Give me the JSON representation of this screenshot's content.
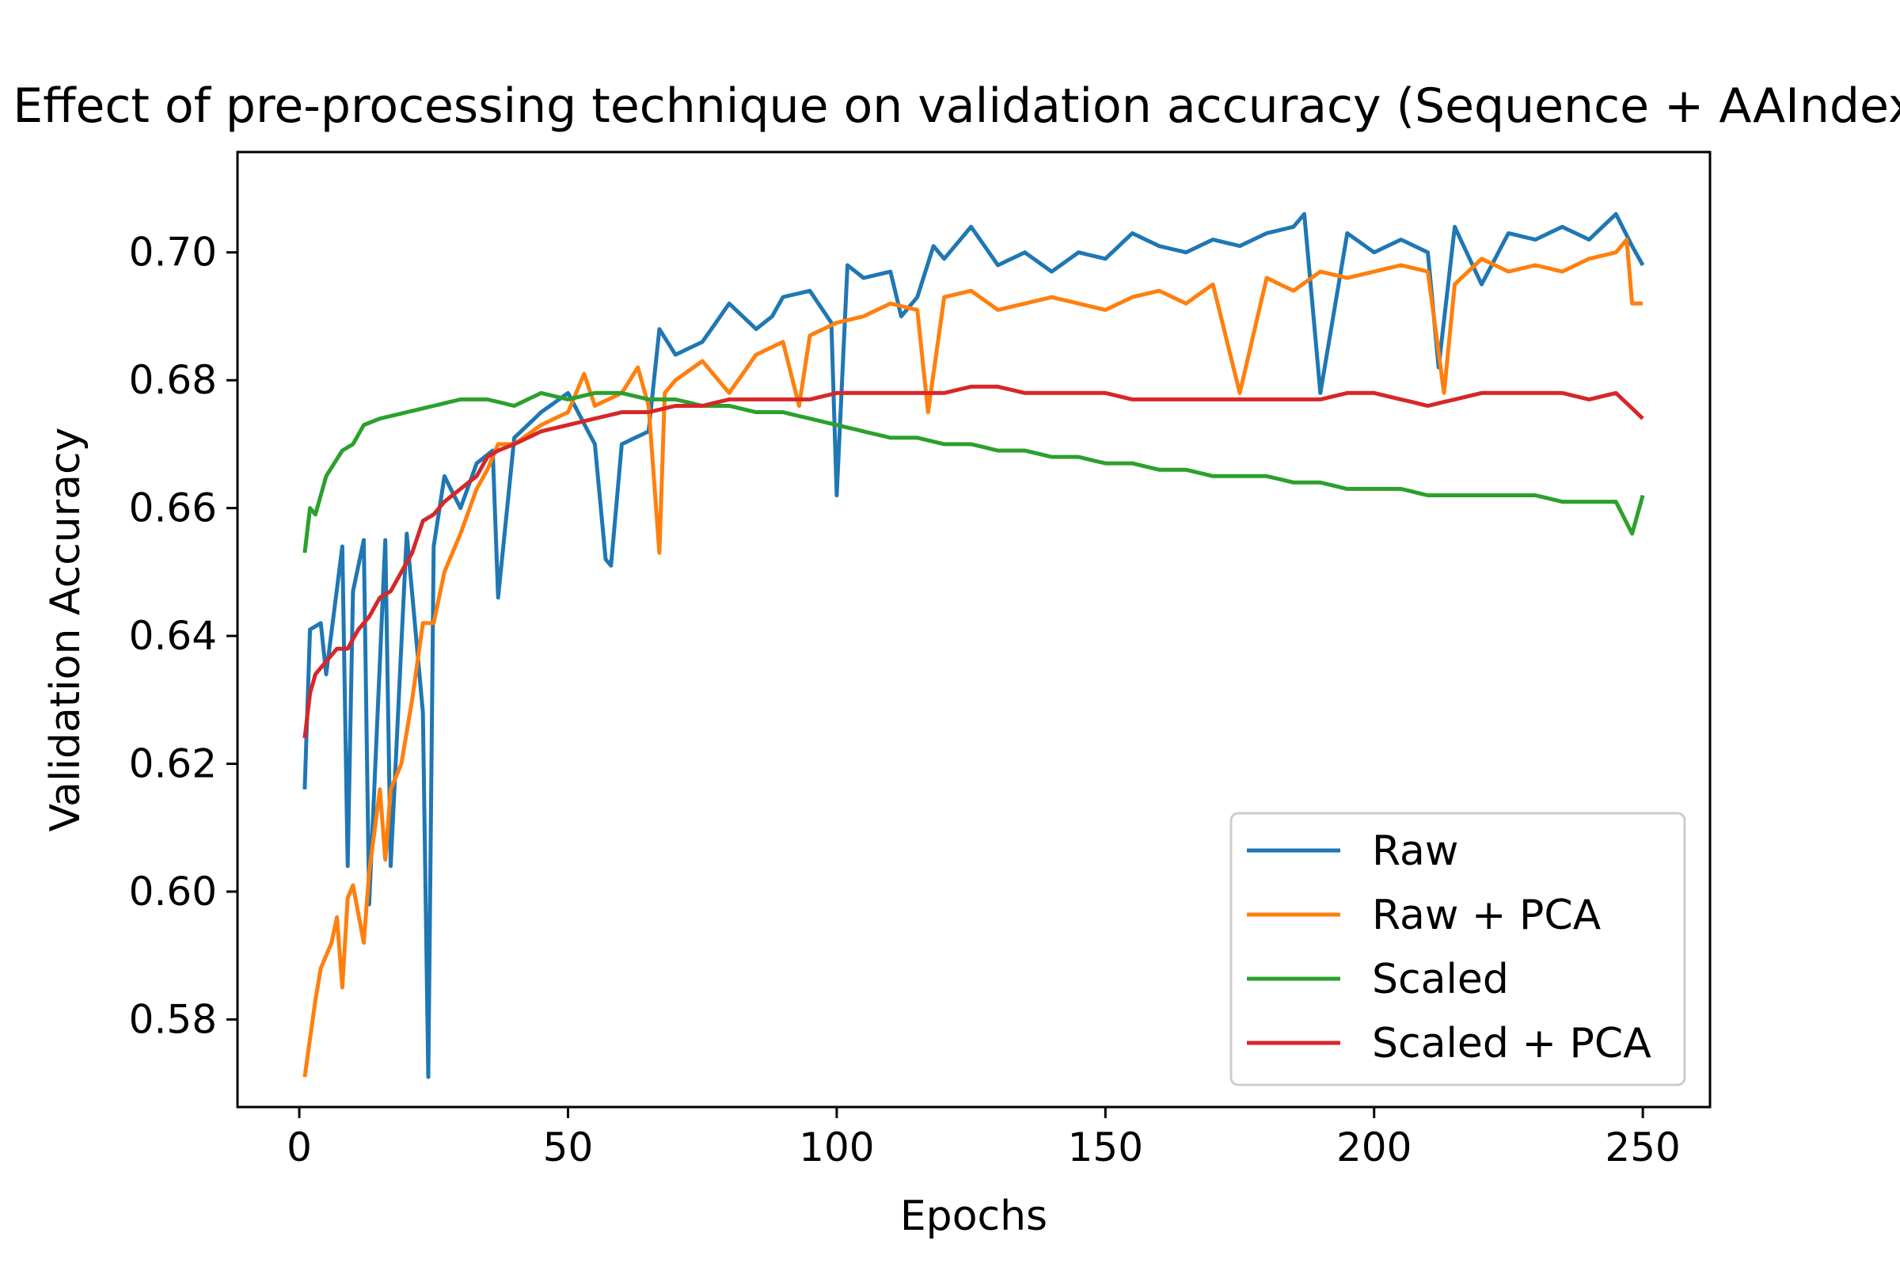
{
  "chart_data": {
    "type": "line",
    "title": "Effect of pre-processing technique on validation accuracy (Sequence + AAIndex)",
    "xlabel": "Epochs",
    "ylabel": "Validation Accuracy",
    "xlim": [
      -11.5,
      262.5
    ],
    "ylim": [
      0.5663,
      0.7157
    ],
    "x_ticks": [
      0,
      50,
      100,
      150,
      200,
      250
    ],
    "y_ticks": [
      0.58,
      0.6,
      0.62,
      0.64,
      0.66,
      0.68,
      0.7
    ],
    "x_tick_labels": [
      "0",
      "50",
      "100",
      "150",
      "200",
      "250"
    ],
    "y_tick_labels": [
      "0.58",
      "0.60",
      "0.62",
      "0.64",
      "0.66",
      "0.68",
      "0.70"
    ],
    "grid": false,
    "legend_position": "lower-right",
    "x": {
      "start": 1,
      "end": 250
    },
    "series": [
      {
        "name": "Raw",
        "color": "#1f77b4",
        "anchors": [
          [
            1,
            0.616
          ],
          [
            2,
            0.641
          ],
          [
            4,
            0.642
          ],
          [
            5,
            0.634
          ],
          [
            8,
            0.654
          ],
          [
            9,
            0.604
          ],
          [
            10,
            0.647
          ],
          [
            12,
            0.655
          ],
          [
            13,
            0.598
          ],
          [
            16,
            0.655
          ],
          [
            17,
            0.604
          ],
          [
            20,
            0.656
          ],
          [
            23,
            0.628
          ],
          [
            24,
            0.571
          ],
          [
            25,
            0.654
          ],
          [
            27,
            0.665
          ],
          [
            30,
            0.66
          ],
          [
            33,
            0.667
          ],
          [
            36,
            0.669
          ],
          [
            37,
            0.646
          ],
          [
            40,
            0.671
          ],
          [
            45,
            0.675
          ],
          [
            50,
            0.678
          ],
          [
            55,
            0.67
          ],
          [
            57,
            0.652
          ],
          [
            58,
            0.651
          ],
          [
            60,
            0.67
          ],
          [
            65,
            0.672
          ],
          [
            67,
            0.688
          ],
          [
            70,
            0.684
          ],
          [
            75,
            0.686
          ],
          [
            80,
            0.692
          ],
          [
            85,
            0.688
          ],
          [
            88,
            0.69
          ],
          [
            90,
            0.693
          ],
          [
            95,
            0.694
          ],
          [
            99,
            0.689
          ],
          [
            100,
            0.662
          ],
          [
            102,
            0.698
          ],
          [
            105,
            0.696
          ],
          [
            110,
            0.697
          ],
          [
            112,
            0.69
          ],
          [
            115,
            0.693
          ],
          [
            118,
            0.701
          ],
          [
            120,
            0.699
          ],
          [
            125,
            0.704
          ],
          [
            130,
            0.698
          ],
          [
            135,
            0.7
          ],
          [
            140,
            0.697
          ],
          [
            145,
            0.7
          ],
          [
            150,
            0.699
          ],
          [
            155,
            0.703
          ],
          [
            160,
            0.701
          ],
          [
            165,
            0.7
          ],
          [
            170,
            0.702
          ],
          [
            175,
            0.701
          ],
          [
            180,
            0.703
          ],
          [
            185,
            0.704
          ],
          [
            187,
            0.706
          ],
          [
            190,
            0.678
          ],
          [
            195,
            0.703
          ],
          [
            200,
            0.7
          ],
          [
            205,
            0.702
          ],
          [
            210,
            0.7
          ],
          [
            212,
            0.682
          ],
          [
            215,
            0.704
          ],
          [
            220,
            0.695
          ],
          [
            225,
            0.703
          ],
          [
            230,
            0.702
          ],
          [
            235,
            0.704
          ],
          [
            240,
            0.702
          ],
          [
            245,
            0.706
          ],
          [
            248,
            0.701
          ],
          [
            250,
            0.698
          ]
        ]
      },
      {
        "name": "Raw + PCA",
        "color": "#ff7f0e",
        "anchors": [
          [
            1,
            0.571
          ],
          [
            3,
            0.583
          ],
          [
            4,
            0.588
          ],
          [
            6,
            0.592
          ],
          [
            7,
            0.596
          ],
          [
            8,
            0.585
          ],
          [
            9,
            0.599
          ],
          [
            10,
            0.601
          ],
          [
            12,
            0.592
          ],
          [
            13,
            0.603
          ],
          [
            15,
            0.616
          ],
          [
            16,
            0.605
          ],
          [
            17,
            0.616
          ],
          [
            19,
            0.62
          ],
          [
            21,
            0.63
          ],
          [
            23,
            0.642
          ],
          [
            25,
            0.642
          ],
          [
            27,
            0.65
          ],
          [
            30,
            0.656
          ],
          [
            33,
            0.663
          ],
          [
            35,
            0.666
          ],
          [
            37,
            0.67
          ],
          [
            40,
            0.67
          ],
          [
            45,
            0.673
          ],
          [
            50,
            0.675
          ],
          [
            53,
            0.681
          ],
          [
            55,
            0.676
          ],
          [
            60,
            0.678
          ],
          [
            63,
            0.682
          ],
          [
            65,
            0.676
          ],
          [
            67,
            0.653
          ],
          [
            68,
            0.678
          ],
          [
            70,
            0.68
          ],
          [
            75,
            0.683
          ],
          [
            80,
            0.678
          ],
          [
            85,
            0.684
          ],
          [
            90,
            0.686
          ],
          [
            93,
            0.676
          ],
          [
            95,
            0.687
          ],
          [
            100,
            0.689
          ],
          [
            105,
            0.69
          ],
          [
            110,
            0.692
          ],
          [
            115,
            0.691
          ],
          [
            117,
            0.675
          ],
          [
            120,
            0.693
          ],
          [
            125,
            0.694
          ],
          [
            130,
            0.691
          ],
          [
            135,
            0.692
          ],
          [
            140,
            0.693
          ],
          [
            145,
            0.692
          ],
          [
            150,
            0.691
          ],
          [
            155,
            0.693
          ],
          [
            160,
            0.694
          ],
          [
            165,
            0.692
          ],
          [
            170,
            0.695
          ],
          [
            175,
            0.678
          ],
          [
            180,
            0.696
          ],
          [
            185,
            0.694
          ],
          [
            190,
            0.697
          ],
          [
            195,
            0.696
          ],
          [
            200,
            0.697
          ],
          [
            205,
            0.698
          ],
          [
            210,
            0.697
          ],
          [
            213,
            0.678
          ],
          [
            215,
            0.695
          ],
          [
            220,
            0.699
          ],
          [
            225,
            0.697
          ],
          [
            230,
            0.698
          ],
          [
            235,
            0.697
          ],
          [
            240,
            0.699
          ],
          [
            245,
            0.7
          ],
          [
            247,
            0.702
          ],
          [
            248,
            0.692
          ],
          [
            250,
            0.692
          ]
        ]
      },
      {
        "name": "Scaled",
        "color": "#2ca02c",
        "anchors": [
          [
            1,
            0.653
          ],
          [
            2,
            0.66
          ],
          [
            3,
            0.659
          ],
          [
            5,
            0.665
          ],
          [
            8,
            0.669
          ],
          [
            10,
            0.67
          ],
          [
            12,
            0.673
          ],
          [
            15,
            0.674
          ],
          [
            20,
            0.675
          ],
          [
            25,
            0.676
          ],
          [
            30,
            0.677
          ],
          [
            35,
            0.677
          ],
          [
            40,
            0.676
          ],
          [
            45,
            0.678
          ],
          [
            50,
            0.677
          ],
          [
            55,
            0.678
          ],
          [
            60,
            0.678
          ],
          [
            65,
            0.677
          ],
          [
            70,
            0.677
          ],
          [
            75,
            0.676
          ],
          [
            80,
            0.676
          ],
          [
            85,
            0.675
          ],
          [
            90,
            0.675
          ],
          [
            95,
            0.674
          ],
          [
            100,
            0.673
          ],
          [
            105,
            0.672
          ],
          [
            110,
            0.671
          ],
          [
            115,
            0.671
          ],
          [
            120,
            0.67
          ],
          [
            125,
            0.67
          ],
          [
            130,
            0.669
          ],
          [
            135,
            0.669
          ],
          [
            140,
            0.668
          ],
          [
            145,
            0.668
          ],
          [
            150,
            0.667
          ],
          [
            155,
            0.667
          ],
          [
            160,
            0.666
          ],
          [
            165,
            0.666
          ],
          [
            170,
            0.665
          ],
          [
            175,
            0.665
          ],
          [
            180,
            0.665
          ],
          [
            185,
            0.664
          ],
          [
            190,
            0.664
          ],
          [
            195,
            0.663
          ],
          [
            200,
            0.663
          ],
          [
            205,
            0.663
          ],
          [
            210,
            0.662
          ],
          [
            215,
            0.662
          ],
          [
            220,
            0.662
          ],
          [
            225,
            0.662
          ],
          [
            230,
            0.662
          ],
          [
            235,
            0.661
          ],
          [
            240,
            0.661
          ],
          [
            245,
            0.661
          ],
          [
            248,
            0.656
          ],
          [
            250,
            0.662
          ]
        ]
      },
      {
        "name": "Scaled + PCA",
        "color": "#d62728",
        "anchors": [
          [
            1,
            0.624
          ],
          [
            2,
            0.631
          ],
          [
            3,
            0.634
          ],
          [
            5,
            0.636
          ],
          [
            7,
            0.638
          ],
          [
            9,
            0.638
          ],
          [
            11,
            0.641
          ],
          [
            13,
            0.643
          ],
          [
            15,
            0.646
          ],
          [
            17,
            0.647
          ],
          [
            19,
            0.65
          ],
          [
            21,
            0.653
          ],
          [
            23,
            0.658
          ],
          [
            25,
            0.659
          ],
          [
            27,
            0.661
          ],
          [
            30,
            0.663
          ],
          [
            33,
            0.665
          ],
          [
            35,
            0.668
          ],
          [
            37,
            0.669
          ],
          [
            40,
            0.67
          ],
          [
            45,
            0.672
          ],
          [
            50,
            0.673
          ],
          [
            55,
            0.674
          ],
          [
            60,
            0.675
          ],
          [
            65,
            0.675
          ],
          [
            70,
            0.676
          ],
          [
            75,
            0.676
          ],
          [
            80,
            0.677
          ],
          [
            85,
            0.677
          ],
          [
            90,
            0.677
          ],
          [
            95,
            0.677
          ],
          [
            100,
            0.678
          ],
          [
            105,
            0.678
          ],
          [
            110,
            0.678
          ],
          [
            115,
            0.678
          ],
          [
            120,
            0.678
          ],
          [
            125,
            0.679
          ],
          [
            130,
            0.679
          ],
          [
            135,
            0.678
          ],
          [
            140,
            0.678
          ],
          [
            145,
            0.678
          ],
          [
            150,
            0.678
          ],
          [
            155,
            0.677
          ],
          [
            160,
            0.677
          ],
          [
            165,
            0.677
          ],
          [
            170,
            0.677
          ],
          [
            175,
            0.677
          ],
          [
            180,
            0.677
          ],
          [
            185,
            0.677
          ],
          [
            190,
            0.677
          ],
          [
            195,
            0.678
          ],
          [
            200,
            0.678
          ],
          [
            205,
            0.677
          ],
          [
            210,
            0.676
          ],
          [
            215,
            0.677
          ],
          [
            220,
            0.678
          ],
          [
            225,
            0.678
          ],
          [
            230,
            0.678
          ],
          [
            235,
            0.678
          ],
          [
            240,
            0.677
          ],
          [
            245,
            0.678
          ],
          [
            250,
            0.674
          ]
        ]
      }
    ]
  }
}
